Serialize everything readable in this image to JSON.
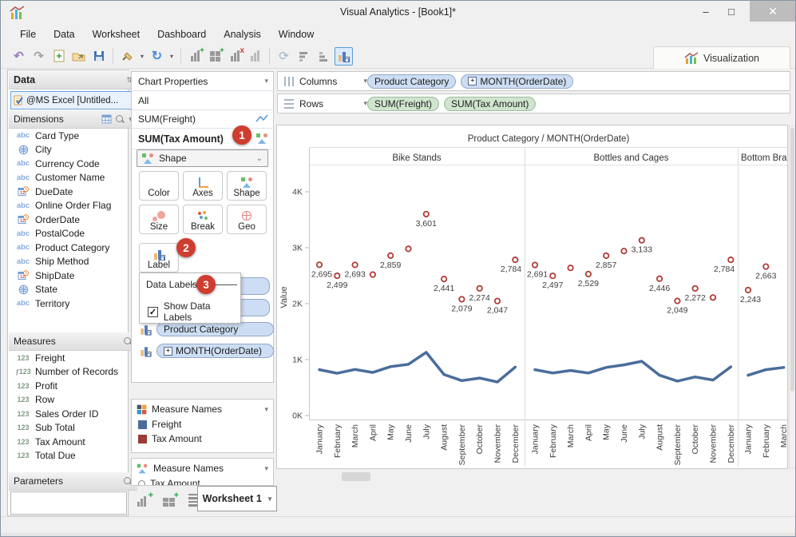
{
  "window": {
    "title": "Visual Analytics - [Book1]*",
    "controls": [
      "minimize-icon",
      "maximize-icon",
      "close-icon"
    ]
  },
  "menu": {
    "items": [
      "File",
      "Data",
      "Worksheet",
      "Dashboard",
      "Analysis",
      "Window"
    ]
  },
  "toolbar": {
    "icons": [
      "undo-icon",
      "redo-icon",
      "new-workbook-icon",
      "open-icon",
      "save-icon",
      "sep",
      "connect-data-icon",
      "dropdown-icon",
      "refresh-icon",
      "dropdown-icon",
      "sep",
      "add-chart-icon",
      "add-crosstab-icon",
      "remove-chart-icon",
      "bar-chart-icon",
      "sep",
      "swap-axes-icon",
      "sort-descending-icon",
      "sort-ascending-icon",
      "label-marks-button"
    ],
    "visualization_tab": "Visualization"
  },
  "data_panel": {
    "title": "Data",
    "connection": "@MS Excel [Untitled...",
    "dimensions": {
      "label": "Dimensions",
      "header_icons": [
        "table-icon",
        "search-icon",
        "chevron-down-icon"
      ],
      "items": [
        {
          "icon": "abc",
          "label": "Card Type"
        },
        {
          "icon": "globe",
          "label": "City"
        },
        {
          "icon": "abc",
          "label": "Currency Code"
        },
        {
          "icon": "abc",
          "label": "Customer Name"
        },
        {
          "icon": "date",
          "label": "DueDate"
        },
        {
          "icon": "abc",
          "label": "Online Order Flag"
        },
        {
          "icon": "date",
          "label": "OrderDate"
        },
        {
          "icon": "abc",
          "label": "PostalCode"
        },
        {
          "icon": "abc",
          "label": "Product Category"
        },
        {
          "icon": "abc",
          "label": "Ship Method"
        },
        {
          "icon": "date",
          "label": "ShipDate"
        },
        {
          "icon": "globe",
          "label": "State"
        },
        {
          "icon": "abc",
          "label": "Territory"
        }
      ]
    },
    "measures": {
      "label": "Measures",
      "items": [
        {
          "icon": "num",
          "label": "Freight"
        },
        {
          "icon": "fnum",
          "label": "Number of Records"
        },
        {
          "icon": "num",
          "label": "Profit"
        },
        {
          "icon": "num",
          "label": "Row"
        },
        {
          "icon": "num",
          "label": "Sales Order ID"
        },
        {
          "icon": "num",
          "label": "Sub Total"
        },
        {
          "icon": "num",
          "label": "Tax Amount"
        },
        {
          "icon": "num",
          "label": "Total Due"
        }
      ]
    },
    "parameters": {
      "label": "Parameters"
    }
  },
  "properties_panel": {
    "header": "Chart Properties",
    "measure_rows": [
      {
        "label": "All"
      },
      {
        "label": "SUM(Freight)",
        "icon": "line-mark-icon"
      },
      {
        "label": "SUM(Tax Amount)",
        "icon": "shape-mark-icon",
        "badge": "1"
      }
    ],
    "mark_type_dropdown": {
      "value": "Shape"
    },
    "buttons": [
      {
        "label": "Color"
      },
      {
        "label": "Axes"
      },
      {
        "label": "Shape"
      },
      {
        "label": "Size"
      },
      {
        "label": "Break"
      },
      {
        "label": "Geo"
      },
      {
        "label": "Label",
        "badge": "2"
      }
    ],
    "data_labels_popup": {
      "title": "Data Labels",
      "badge": "3",
      "checkbox": {
        "label": "Show Data Labels",
        "checked": true
      }
    },
    "breakdown_pills": [
      {
        "text": "Product Category"
      },
      {
        "text": "MONTH(OrderDate)",
        "expandable": true
      }
    ]
  },
  "legends": [
    {
      "title": "Measure Names",
      "icon": "color-legend-icon",
      "entries": [
        {
          "label": "Freight",
          "swatch": "#4a6d9b"
        },
        {
          "label": "Tax Amount",
          "swatch": "#9c3a34"
        }
      ]
    },
    {
      "title": "Measure Names",
      "icon": "shape-legend-icon",
      "entries": [
        {
          "label": "Tax Amount",
          "shape": "circle"
        }
      ]
    }
  ],
  "shelves": {
    "columns": {
      "label": "Columns",
      "pills": [
        {
          "text": "Product Category",
          "type": "dim"
        },
        {
          "text": "MONTH(OrderDate)",
          "type": "dim",
          "expandable": true
        }
      ]
    },
    "rows": {
      "label": "Rows",
      "pills": [
        {
          "text": "SUM(Freight)",
          "type": "mea"
        },
        {
          "text": "SUM(Tax Amount)",
          "type": "mea"
        }
      ]
    }
  },
  "bottom_bar": {
    "icons": [
      "add-worksheet-icon",
      "add-dashboard-icon",
      "worksheet-list-icon"
    ],
    "tab": "Worksheet 1"
  },
  "chart_data": {
    "type": "scatter",
    "title": "Product Category / MONTH(OrderDate)",
    "ylabel": "Value",
    "ylim": [
      0,
      4400
    ],
    "yticks": [
      "0K",
      "1K",
      "2K",
      "3K",
      "4K"
    ],
    "grid": false,
    "months": [
      "January",
      "February",
      "March",
      "April",
      "May",
      "June",
      "July",
      "August",
      "September",
      "October",
      "November",
      "December"
    ],
    "series_info": [
      {
        "name": "Tax Amount",
        "mark": "point",
        "color": "#b13b36"
      },
      {
        "name": "Freight",
        "mark": "line",
        "color": "#4a6d9b"
      }
    ],
    "panels": [
      {
        "header": "Bike Stands",
        "visible_months": 12,
        "tax_amount": [
          {
            "v": 2695,
            "label": "2,695"
          },
          {
            "v": 2499,
            "label": "2,499"
          },
          {
            "v": 2693,
            "label": "2,693"
          },
          {
            "v": 2520,
            "label": null
          },
          {
            "v": 2859,
            "label": "2,859"
          },
          {
            "v": 2980,
            "label": null
          },
          {
            "v": 3601,
            "label": "3,601"
          },
          {
            "v": 2441,
            "label": "2,441"
          },
          {
            "v": 2079,
            "label": "2,079"
          },
          {
            "v": 2274,
            "label": "2,274"
          },
          {
            "v": 2047,
            "label": "2,047"
          },
          {
            "v": 2784,
            "label": "2,784"
          }
        ],
        "freight": [
          820,
          755,
          825,
          770,
          875,
          915,
          1130,
          735,
          625,
          670,
          600,
          865
        ]
      },
      {
        "header": "Bottles and Cages",
        "visible_months": 12,
        "tax_amount": [
          {
            "v": 2691,
            "label": "2,691"
          },
          {
            "v": 2497,
            "label": "2,497"
          },
          {
            "v": 2640,
            "label": null
          },
          {
            "v": 2529,
            "label": "2,529"
          },
          {
            "v": 2857,
            "label": "2,857"
          },
          {
            "v": 2940,
            "label": null
          },
          {
            "v": 3133,
            "label": "3,133"
          },
          {
            "v": 2446,
            "label": "2,446"
          },
          {
            "v": 2049,
            "label": "2,049"
          },
          {
            "v": 2272,
            "label": "2,272"
          },
          {
            "v": 2110,
            "label": null
          },
          {
            "v": 2784,
            "label": "2,784"
          }
        ],
        "freight": [
          820,
          760,
          805,
          760,
          860,
          905,
          970,
          720,
          615,
          690,
          635,
          870
        ]
      },
      {
        "header": "Bottom Bra",
        "visible_months": 3,
        "tax_amount": [
          {
            "v": 2243,
            "label": "2,243"
          },
          {
            "v": 2663,
            "label": "2,663"
          }
        ],
        "freight": [
          720,
          820,
          860
        ]
      }
    ]
  }
}
